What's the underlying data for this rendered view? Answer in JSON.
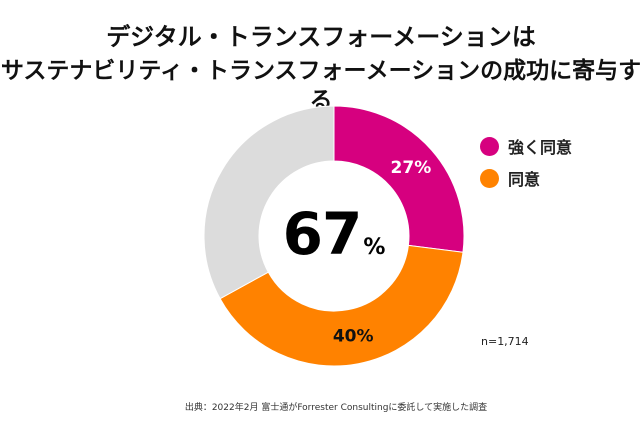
{
  "title": {
    "line1": "デジタル・トランスフォーメーションは",
    "line2": "サステナビリティ・トランスフォーメーションの成功に寄与する"
  },
  "colors": {
    "strongly_agree": "#d6007f",
    "agree": "#ff8200",
    "other": "#dcdcdc"
  },
  "chart_data": {
    "type": "pie",
    "donut": true,
    "title": "デジタル・トランスフォーメーションは サステナビリティ・トランスフォーメーションの成功に寄与する",
    "center_label": {
      "value": "67",
      "unit": "%"
    },
    "slices": [
      {
        "name": "強く同意",
        "value": 27,
        "label": "27%",
        "color": "#d6007f"
      },
      {
        "name": "同意",
        "value": 40,
        "label": "40%",
        "color": "#ff8200"
      },
      {
        "name": "",
        "value": 33,
        "label": "",
        "color": "#dcdcdc"
      }
    ],
    "legend": {
      "position": "right",
      "entries": [
        "強く同意",
        "同意"
      ]
    }
  },
  "legend": {
    "items": [
      {
        "label": "強く同意",
        "color": "#d6007f"
      },
      {
        "label": "同意",
        "color": "#ff8200"
      }
    ]
  },
  "sample_size": "n=1,714",
  "source": "出典：2022年2月 富士通がForrester Consultingに委託して実施した調査"
}
